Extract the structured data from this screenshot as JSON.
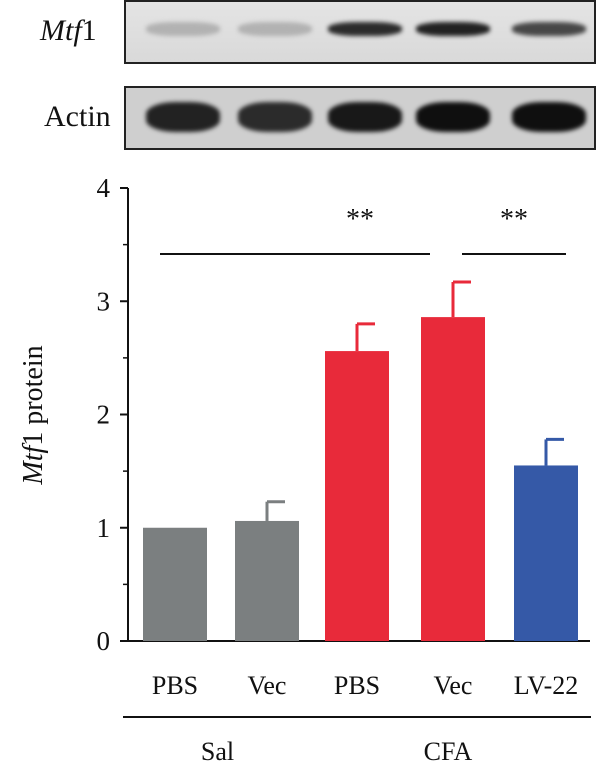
{
  "blots": {
    "mtf1_label": "Mtf1",
    "actin_label": "Actin",
    "mtf1_intensity": [
      0.12,
      0.12,
      0.85,
      0.9,
      0.7
    ],
    "actin_intensity": [
      0.9,
      0.85,
      0.95,
      1.0,
      1.0
    ]
  },
  "chart_data": {
    "type": "bar",
    "categories": [
      "PBS",
      "Vec",
      "PBS",
      "Vec",
      "LV-22"
    ],
    "values": [
      1.0,
      1.06,
      2.56,
      2.86,
      1.55
    ],
    "errors": [
      0,
      0.17,
      0.24,
      0.31,
      0.23
    ],
    "bar_colors": [
      "#7b7f80",
      "#7b7f80",
      "#e82a3a",
      "#e82a3a",
      "#3559a7"
    ],
    "ylabel": "Mtf1 protein",
    "ylim": [
      0,
      4
    ],
    "yticks": [
      0,
      1,
      2,
      3,
      4
    ],
    "groups": [
      {
        "label": "Sal",
        "start": 0,
        "end": 1
      },
      {
        "label": "CFA",
        "start": 2,
        "end": 4
      }
    ],
    "significance": [
      {
        "from": 0,
        "to": 3,
        "label": "**"
      },
      {
        "from": 3,
        "to": 4,
        "label": "**"
      }
    ],
    "grid": false
  }
}
